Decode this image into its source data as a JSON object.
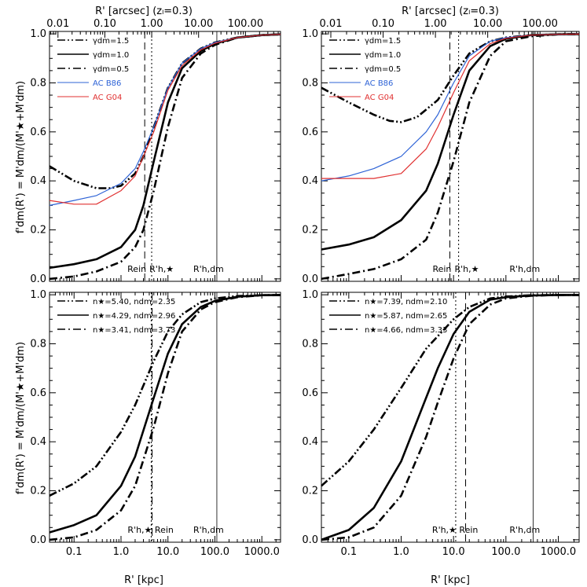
{
  "figure": {
    "top_axis_title": "R' [arcsec] (zₗ=0.3)",
    "bottom_axis_title": "R' [kpc]",
    "y_axis_title": "f'dm(R') = M'dm/(M'★+M'dm)",
    "top_tick_labels": [
      "0.01",
      "0.10",
      "1.00",
      "10.00",
      "100.00"
    ],
    "bottom_tick_labels": [
      "0.1",
      "1.0",
      "10.0",
      "100.0",
      "1000.0"
    ],
    "y_tick_labels": [
      "0.0",
      "0.2",
      "0.4",
      "0.6",
      "0.8",
      "1.0"
    ]
  },
  "chart_data": [
    {
      "panel": "top-left",
      "type": "line",
      "xscale": "log",
      "xlim": [
        0.03,
        2500
      ],
      "ylim": [
        -0.01,
        1.01
      ],
      "x_top_scale": "log",
      "x_top_lim": [
        0.0066,
        560
      ],
      "legend_position": "top-left",
      "legend": [
        "γdm=1.5",
        "γdm=1.0",
        "γdm=0.5",
        "AC B86",
        "AC G04"
      ],
      "series": [
        {
          "name": "γdm=1.5",
          "style": "dash-dot-dot",
          "color": "#000000",
          "x": [
            0.03,
            0.1,
            0.3,
            0.6,
            1,
            2,
            3,
            5,
            10,
            20,
            50,
            100,
            300,
            1000,
            2500
          ],
          "y": [
            0.46,
            0.4,
            0.37,
            0.37,
            0.38,
            0.43,
            0.5,
            0.62,
            0.78,
            0.88,
            0.94,
            0.965,
            0.985,
            0.995,
            0.998
          ]
        },
        {
          "name": "γdm=1.0",
          "style": "solid",
          "color": "#000000",
          "x": [
            0.03,
            0.1,
            0.3,
            1,
            2,
            3,
            5,
            10,
            20,
            50,
            100,
            300,
            1000,
            2500
          ],
          "y": [
            0.045,
            0.06,
            0.08,
            0.13,
            0.2,
            0.3,
            0.48,
            0.72,
            0.86,
            0.93,
            0.96,
            0.985,
            0.995,
            0.998
          ]
        },
        {
          "name": "γdm=0.5",
          "style": "dash-dot",
          "color": "#000000",
          "x": [
            0.03,
            0.1,
            0.3,
            1,
            2,
            3,
            5,
            10,
            20,
            50,
            100,
            300,
            1000,
            2500
          ],
          "y": [
            0.0,
            0.01,
            0.03,
            0.07,
            0.13,
            0.2,
            0.36,
            0.62,
            0.82,
            0.92,
            0.955,
            0.985,
            0.995,
            0.998
          ]
        },
        {
          "name": "AC B86",
          "style": "solid",
          "color": "#2e63d6",
          "x": [
            0.03,
            0.1,
            0.3,
            1,
            2,
            3,
            5,
            10,
            20,
            50,
            100,
            300,
            1000,
            2500
          ],
          "y": [
            0.3,
            0.32,
            0.34,
            0.39,
            0.45,
            0.52,
            0.62,
            0.78,
            0.88,
            0.94,
            0.965,
            0.985,
            0.995,
            0.998
          ]
        },
        {
          "name": "AC G04",
          "style": "solid",
          "color": "#e03030",
          "x": [
            0.03,
            0.1,
            0.3,
            1,
            2,
            3,
            5,
            10,
            20,
            50,
            100,
            300,
            1000,
            2500
          ],
          "y": [
            0.32,
            0.305,
            0.305,
            0.36,
            0.42,
            0.5,
            0.6,
            0.77,
            0.87,
            0.935,
            0.962,
            0.985,
            0.995,
            0.998
          ]
        }
      ],
      "markers": [
        {
          "label": "Rein",
          "x": 3.2,
          "style": "dashed"
        },
        {
          "label": "R'h,★",
          "x": 4.5,
          "style": "dotted"
        },
        {
          "label": "R'h,dm",
          "x": 110,
          "style": "solid"
        }
      ]
    },
    {
      "panel": "top-right",
      "type": "line",
      "xscale": "log",
      "xlim": [
        0.03,
        2500
      ],
      "ylim": [
        -0.01,
        1.01
      ],
      "x_top_scale": "log",
      "x_top_lim": [
        0.0066,
        560
      ],
      "legend_position": "top-left",
      "legend": [
        "γdm=1.5",
        "γdm=1.0",
        "γdm=0.5",
        "AC B86",
        "AC G04"
      ],
      "series": [
        {
          "name": "γdm=1.5",
          "style": "dash-dot-dot",
          "color": "#000000",
          "x": [
            0.03,
            0.1,
            0.3,
            0.6,
            1,
            2,
            5,
            10,
            20,
            50,
            100,
            300,
            1000,
            2500
          ],
          "y": [
            0.78,
            0.72,
            0.67,
            0.645,
            0.64,
            0.66,
            0.73,
            0.83,
            0.92,
            0.97,
            0.985,
            0.995,
            0.998,
            0.999
          ]
        },
        {
          "name": "γdm=1.0",
          "style": "solid",
          "color": "#000000",
          "x": [
            0.03,
            0.1,
            0.3,
            1,
            3,
            5,
            10,
            20,
            50,
            100,
            300,
            1000,
            2500
          ],
          "y": [
            0.12,
            0.14,
            0.17,
            0.24,
            0.36,
            0.47,
            0.67,
            0.85,
            0.95,
            0.98,
            0.995,
            0.998,
            0.999
          ]
        },
        {
          "name": "γdm=0.5",
          "style": "dash-dot",
          "color": "#000000",
          "x": [
            0.03,
            0.1,
            0.3,
            1,
            3,
            5,
            10,
            20,
            50,
            100,
            300,
            1000,
            2500
          ],
          "y": [
            0.0,
            0.02,
            0.04,
            0.08,
            0.16,
            0.27,
            0.48,
            0.72,
            0.91,
            0.97,
            0.99,
            0.998,
            0.999
          ]
        },
        {
          "name": "AC B86",
          "style": "solid",
          "color": "#2e63d6",
          "x": [
            0.03,
            0.1,
            0.3,
            1,
            3,
            5,
            10,
            20,
            50,
            100,
            300,
            1000,
            2500
          ],
          "y": [
            0.4,
            0.42,
            0.45,
            0.5,
            0.6,
            0.67,
            0.8,
            0.91,
            0.97,
            0.985,
            0.995,
            0.998,
            0.999
          ]
        },
        {
          "name": "AC G04",
          "style": "solid",
          "color": "#e03030",
          "x": [
            0.03,
            0.1,
            0.3,
            1,
            3,
            5,
            10,
            20,
            50,
            100,
            300,
            1000,
            2500
          ],
          "y": [
            0.41,
            0.41,
            0.41,
            0.43,
            0.53,
            0.62,
            0.76,
            0.89,
            0.96,
            0.982,
            0.995,
            0.998,
            0.999
          ]
        }
      ],
      "markers": [
        {
          "label": "Rein",
          "x": 8.5,
          "style": "dashed"
        },
        {
          "label": "R'h,★",
          "x": 12.5,
          "style": "dotted"
        },
        {
          "label": "R'h,dm",
          "x": 330,
          "style": "solid"
        }
      ]
    },
    {
      "panel": "bottom-left",
      "type": "line",
      "xscale": "log",
      "xlim": [
        0.03,
        2500
      ],
      "ylim": [
        -0.01,
        1.01
      ],
      "legend_position": "top-left",
      "legend": [
        "n★=5.40, ndm=2.35",
        "n★=4.29, ndm=2.96",
        "n★=3.41, ndm=3.73"
      ],
      "series": [
        {
          "name": "n★=5.40, ndm=2.35",
          "style": "dash-dot-dot",
          "color": "#000000",
          "x": [
            0.03,
            0.1,
            0.3,
            1,
            2,
            5,
            10,
            20,
            50,
            100,
            300,
            1000,
            2500
          ],
          "y": [
            0.18,
            0.23,
            0.3,
            0.44,
            0.55,
            0.73,
            0.85,
            0.92,
            0.97,
            0.985,
            0.995,
            0.998,
            0.999
          ]
        },
        {
          "name": "n★=4.29, ndm=2.96",
          "style": "solid",
          "color": "#000000",
          "x": [
            0.03,
            0.1,
            0.3,
            1,
            2,
            5,
            10,
            20,
            50,
            100,
            300,
            1000,
            2500
          ],
          "y": [
            0.03,
            0.06,
            0.1,
            0.22,
            0.34,
            0.58,
            0.76,
            0.88,
            0.95,
            0.975,
            0.992,
            0.998,
            0.999
          ]
        },
        {
          "name": "n★=3.41, ndm=3.73",
          "style": "dash-dot",
          "color": "#000000",
          "x": [
            0.03,
            0.1,
            0.3,
            1,
            2,
            5,
            10,
            20,
            50,
            100,
            300,
            1000,
            2500
          ],
          "y": [
            0.0,
            0.01,
            0.04,
            0.12,
            0.22,
            0.46,
            0.68,
            0.85,
            0.94,
            0.97,
            0.99,
            0.998,
            0.999
          ]
        }
      ],
      "markers": [
        {
          "label": "R'h,★",
          "x": 4.4,
          "style": "dotted"
        },
        {
          "label": "Rein",
          "x": 4.6,
          "style": "dash-dot"
        },
        {
          "label": "R'h,dm",
          "x": 110,
          "style": "solid"
        }
      ]
    },
    {
      "panel": "bottom-right",
      "type": "line",
      "xscale": "log",
      "xlim": [
        0.03,
        2500
      ],
      "ylim": [
        -0.01,
        1.01
      ],
      "legend_position": "top-left",
      "legend": [
        "n★=7.39, ndm=2.10",
        "n★=5.87, ndm=2.65",
        "n★=4.66, ndm=3.33"
      ],
      "series": [
        {
          "name": "n★=7.39, ndm=2.10",
          "style": "dash-dot-dot",
          "color": "#000000",
          "x": [
            0.03,
            0.1,
            0.3,
            1,
            3,
            10,
            20,
            50,
            100,
            300,
            1000,
            2500
          ],
          "y": [
            0.22,
            0.32,
            0.45,
            0.62,
            0.78,
            0.9,
            0.95,
            0.985,
            0.993,
            0.998,
            0.999,
            0.999
          ]
        },
        {
          "name": "n★=5.87, ndm=2.65",
          "style": "solid",
          "color": "#000000",
          "x": [
            0.03,
            0.1,
            0.3,
            1,
            3,
            5,
            10,
            20,
            50,
            100,
            300,
            1000,
            2500
          ],
          "y": [
            0.0,
            0.04,
            0.13,
            0.32,
            0.58,
            0.7,
            0.84,
            0.93,
            0.98,
            0.99,
            0.997,
            0.999,
            0.999
          ]
        },
        {
          "name": "n★=4.66, ndm=3.33",
          "style": "dash-dot",
          "color": "#000000",
          "x": [
            0.03,
            0.1,
            0.3,
            1,
            3,
            5,
            10,
            20,
            50,
            100,
            300,
            1000,
            2500
          ],
          "y": [
            0.0,
            0.01,
            0.05,
            0.18,
            0.42,
            0.56,
            0.74,
            0.88,
            0.96,
            0.985,
            0.996,
            0.999,
            0.999
          ]
        }
      ],
      "markers": [
        {
          "label": "R'h,★",
          "x": 11.0,
          "style": "dotted"
        },
        {
          "label": "Rein",
          "x": 17.0,
          "style": "dashed"
        },
        {
          "label": "R'h,dm",
          "x": 330,
          "style": "solid"
        }
      ]
    }
  ]
}
